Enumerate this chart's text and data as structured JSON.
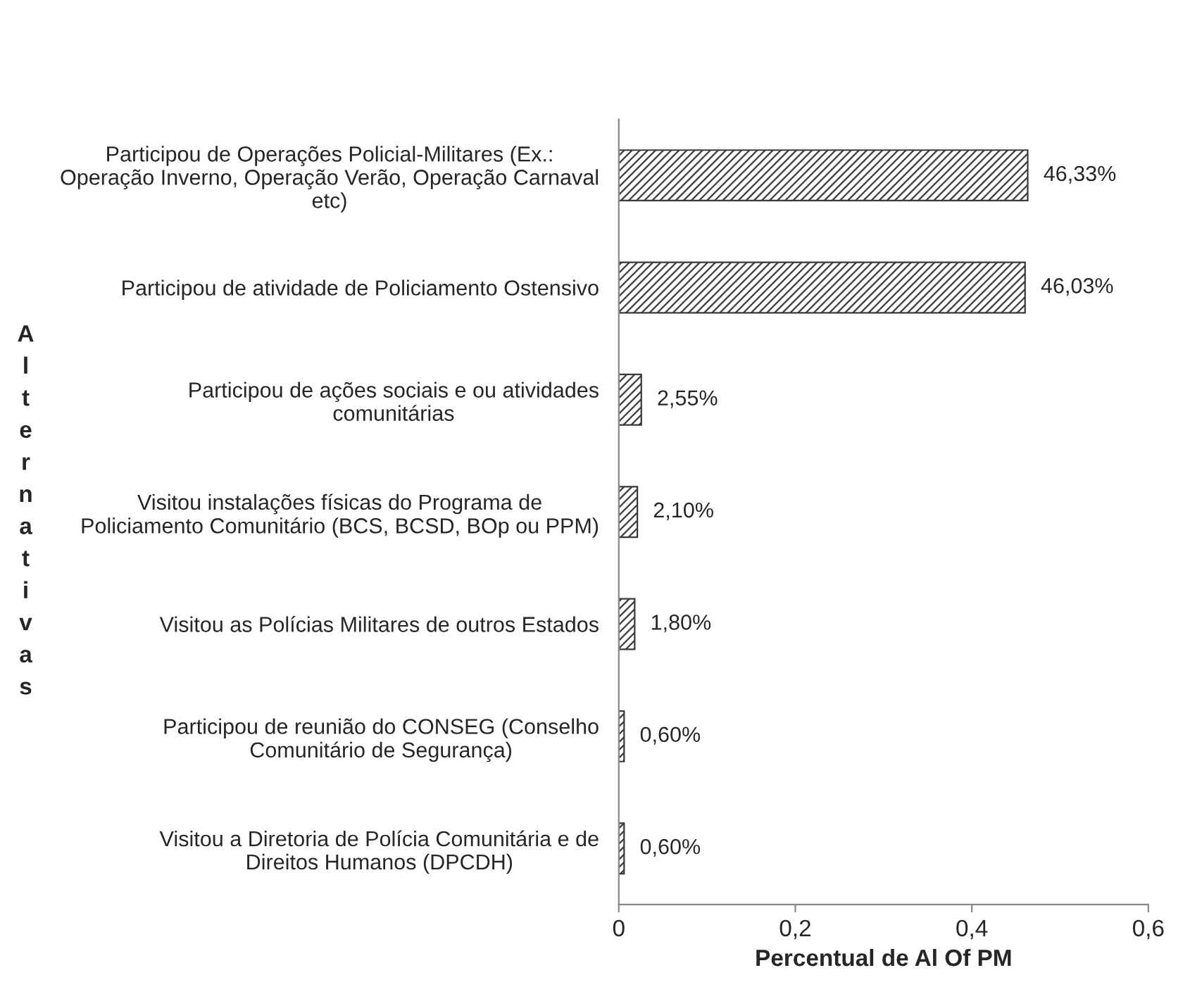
{
  "chart_data": {
    "type": "bar",
    "orientation": "horizontal",
    "xlabel": "Percentual de Al Of PM",
    "ylabel": "Alternativas",
    "categories": [
      "Participou de Operações Policial-Militares (Ex.: Operação Inverno, Operação Verão, Operação Carnaval etc)",
      "Participou de atividade de Policiamento Ostensivo",
      "Participou de ações sociais e ou atividades comunitárias",
      "Visitou instalações físicas do Programa de Policiamento Comunitário (BCS, BCSD, BOp ou PPM)",
      "Visitou as Polícias Militares de outros Estados",
      "Participou de reunião do CONSEG (Conselho Comunitário de Segurança)",
      "Visitou a Diretoria de Polícia Comunitária e de Direitos Humanos (DPCDH)"
    ],
    "values": [
      0.4633,
      0.4603,
      0.0255,
      0.021,
      0.018,
      0.006,
      0.006
    ],
    "value_labels": [
      "46,33%",
      "46,03%",
      "2,55%",
      "2,10%",
      "1,80%",
      "0,60%",
      "0,60%"
    ],
    "color": "#3a3a3a",
    "xlim": [
      0,
      0.6
    ],
    "xticks": [
      0,
      {
        "value": 0.2,
        "label": "0,2"
      },
      {
        "value": 0.4,
        "label": "0,4"
      },
      {
        "value": 0.6,
        "label": "0,6"
      }
    ],
    "grid": false
  }
}
